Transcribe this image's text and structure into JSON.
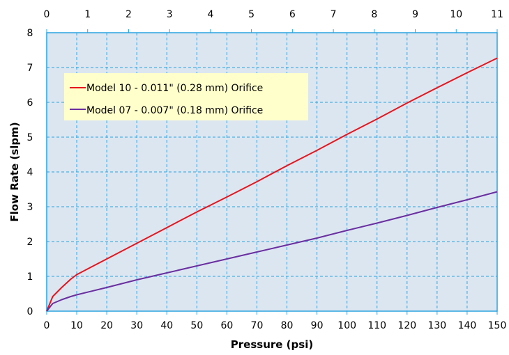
{
  "chart_data": {
    "type": "line",
    "xlabel": "Pressure (psi)",
    "ylabel": "Flow Rate (slpm)",
    "xlim": [
      0,
      150
    ],
    "ylim": [
      0,
      8
    ],
    "x_ticks": [
      0,
      10,
      20,
      30,
      40,
      50,
      60,
      70,
      80,
      90,
      100,
      110,
      120,
      130,
      140,
      150
    ],
    "y_ticks": [
      0,
      1,
      2,
      3,
      4,
      5,
      6,
      7,
      8
    ],
    "secondary_x": {
      "lim": [
        0,
        11
      ],
      "ticks": [
        0,
        1,
        2,
        3,
        4,
        5,
        6,
        7,
        8,
        9,
        10,
        11
      ]
    },
    "grid": true,
    "legend_position": "top-left",
    "series": [
      {
        "name": "Model 10 - 0.011\" (0.28 mm) Orifice",
        "color": "#e8141c",
        "x": [
          0,
          2,
          5,
          8,
          10,
          20,
          30,
          40,
          50,
          60,
          70,
          80,
          90,
          100,
          110,
          120,
          130,
          140,
          150
        ],
        "y": [
          0,
          0.42,
          0.68,
          0.92,
          1.05,
          1.5,
          1.95,
          2.4,
          2.85,
          3.28,
          3.72,
          4.18,
          4.62,
          5.08,
          5.52,
          5.98,
          6.42,
          6.85,
          7.27
        ]
      },
      {
        "name": "Model 07 - 0.007\" (0.18 mm) Orifice",
        "color": "#6a2fa0",
        "x": [
          0,
          2,
          5,
          8,
          10,
          20,
          30,
          40,
          50,
          60,
          70,
          80,
          90,
          100,
          110,
          120,
          130,
          140,
          150
        ],
        "y": [
          0,
          0.22,
          0.33,
          0.42,
          0.47,
          0.68,
          0.9,
          1.1,
          1.3,
          1.5,
          1.7,
          1.9,
          2.1,
          2.32,
          2.53,
          2.75,
          2.98,
          3.2,
          3.43
        ]
      }
    ]
  }
}
